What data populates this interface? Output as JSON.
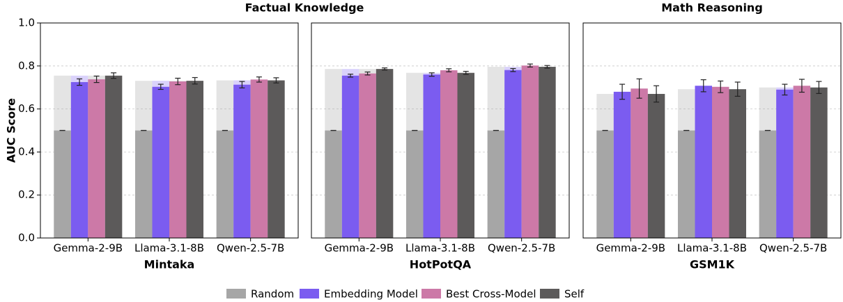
{
  "headers": [
    "Factual Knowledge",
    "Math Reasoning"
  ],
  "chart_data": [
    {
      "type": "bar",
      "xlabel": "Mintaka",
      "ylabel": "AUC Score",
      "categories": [
        "Gemma-2-9B",
        "Llama-3.1-8B",
        "Qwen-2.5-7B"
      ],
      "ylim": [
        0,
        1
      ],
      "yticks": [
        {
          "value": 0,
          "label": "0.0"
        },
        {
          "value": 0.2,
          "label": "0.2"
        },
        {
          "value": 0.4,
          "label": "0.4"
        },
        {
          "value": 0.6,
          "label": "0.6"
        },
        {
          "value": 0.8,
          "label": "0.8"
        },
        {
          "value": 1,
          "label": "1.0"
        }
      ],
      "grid": true,
      "series": [
        {
          "name": "Random",
          "color": "#a6a6a6",
          "values": [
            0.5,
            0.5,
            0.5
          ],
          "errors": [
            0,
            0,
            0
          ]
        },
        {
          "name": "Embedding Model",
          "color": "#7b5cf0",
          "values": [
            0.725,
            0.703,
            0.713
          ],
          "errors": [
            0.015,
            0.012,
            0.015
          ]
        },
        {
          "name": "Best Cross-Model",
          "color": "#cc79a7",
          "values": [
            0.738,
            0.728,
            0.737
          ],
          "errors": [
            0.015,
            0.015,
            0.012
          ]
        },
        {
          "name": "Self",
          "color": "#5c5a5a",
          "values": [
            0.755,
            0.731,
            0.733
          ],
          "errors": [
            0.013,
            0.015,
            0.012
          ]
        }
      ]
    },
    {
      "type": "bar",
      "xlabel": "HotPotQA",
      "categories": [
        "Gemma-2-9B",
        "Llama-3.1-8B",
        "Qwen-2.5-7B"
      ],
      "ylim": [
        0,
        1
      ],
      "yticks": [
        0,
        0.2,
        0.4,
        0.6,
        0.8,
        1
      ],
      "grid": true,
      "series": [
        {
          "name": "Random",
          "color": "#a6a6a6",
          "values": [
            0.5,
            0.5,
            0.5
          ],
          "errors": [
            0,
            0,
            0
          ]
        },
        {
          "name": "Embedding Model",
          "color": "#7b5cf0",
          "values": [
            0.755,
            0.76,
            0.781
          ],
          "errors": [
            0.007,
            0.008,
            0.007
          ]
        },
        {
          "name": "Best Cross-Model",
          "color": "#cc79a7",
          "values": [
            0.765,
            0.78,
            0.802
          ],
          "errors": [
            0.007,
            0.007,
            0.007
          ]
        },
        {
          "name": "Self",
          "color": "#5c5a5a",
          "values": [
            0.786,
            0.768,
            0.796
          ],
          "errors": [
            0.005,
            0.007,
            0.006
          ]
        }
      ]
    },
    {
      "type": "bar",
      "xlabel": "GSM1K",
      "categories": [
        "Gemma-2-9B",
        "Llama-3.1-8B",
        "Qwen-2.5-7B"
      ],
      "ylim": [
        0,
        1
      ],
      "yticks": [
        0,
        0.2,
        0.4,
        0.6,
        0.8,
        1
      ],
      "grid": true,
      "series": [
        {
          "name": "Random",
          "color": "#a6a6a6",
          "values": [
            0.5,
            0.5,
            0.5
          ],
          "errors": [
            0,
            0,
            0
          ]
        },
        {
          "name": "Embedding Model",
          "color": "#7b5cf0",
          "values": [
            0.68,
            0.708,
            0.69
          ],
          "errors": [
            0.035,
            0.028,
            0.025
          ]
        },
        {
          "name": "Best Cross-Model",
          "color": "#cc79a7",
          "values": [
            0.695,
            0.703,
            0.708
          ],
          "errors": [
            0.045,
            0.027,
            0.03
          ]
        },
        {
          "name": "Self",
          "color": "#5c5a5a",
          "values": [
            0.67,
            0.692,
            0.7
          ],
          "errors": [
            0.038,
            0.033,
            0.028
          ]
        }
      ]
    }
  ]
}
